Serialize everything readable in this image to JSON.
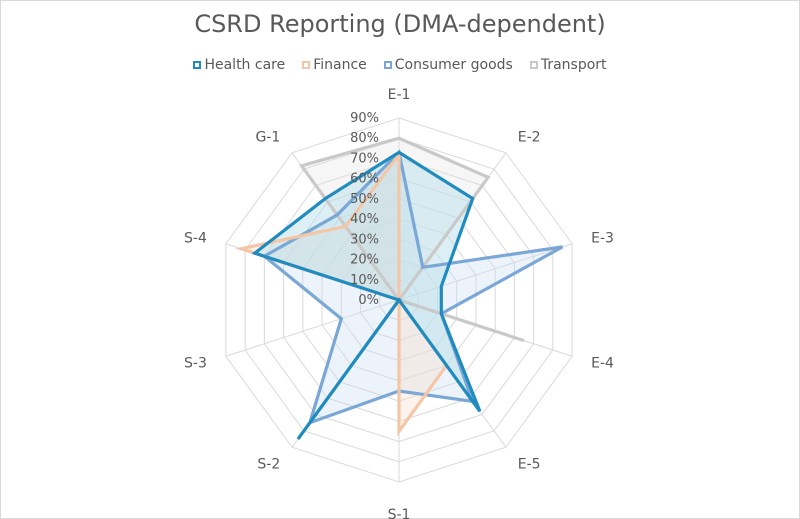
{
  "chart_data": {
    "type": "radar",
    "title": "CSRD Reporting (DMA-dependent)",
    "categories": [
      "E-1",
      "E-2",
      "E-3",
      "E-4",
      "E-5",
      "S-1",
      "S-2",
      "S-3",
      "S-4",
      "G-1"
    ],
    "rlim": [
      0,
      90
    ],
    "ticks": [
      "0%",
      "10%",
      "20%",
      "30%",
      "40%",
      "50%",
      "60%",
      "70%",
      "80%",
      "90%"
    ],
    "legend_position": "top",
    "series": [
      {
        "name": "Health care",
        "color": "#1f8bbf",
        "fill": "#b8dfe9",
        "fill_opacity": 0.5,
        "values": [
          73,
          62,
          22,
          22,
          68,
          0,
          85,
          0,
          75,
          62
        ]
      },
      {
        "name": "Finance",
        "color": "#f4c6a6",
        "fill": "#f8dcc8",
        "fill_opacity": 0.35,
        "values": [
          72,
          0,
          0,
          0,
          40,
          65,
          0,
          0,
          82,
          45
        ]
      },
      {
        "name": "Consumer goods",
        "color": "#7aa7d6",
        "fill": "#c9dcf0",
        "fill_opacity": 0.35,
        "values": [
          73,
          20,
          85,
          22,
          62,
          45,
          75,
          30,
          70,
          52
        ]
      },
      {
        "name": "Transport",
        "color": "#c9c9c9",
        "fill": "#e6e6e6",
        "fill_opacity": 0.35,
        "values": [
          80,
          75,
          0,
          65,
          0,
          0,
          85,
          0,
          0,
          82
        ]
      }
    ]
  }
}
